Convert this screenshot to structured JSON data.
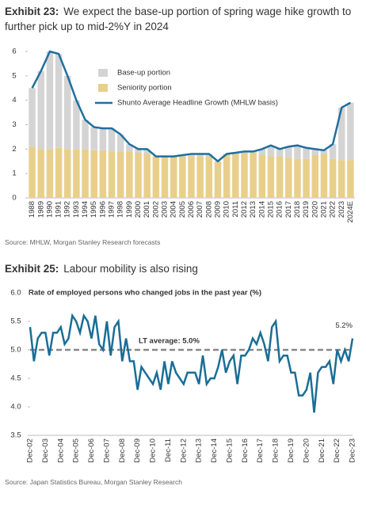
{
  "chart_data": [
    {
      "type": "bar",
      "stacked": true,
      "exhibit": "Exhibit 23:",
      "title": "We expect the base-up portion of spring wage hike growth to further pick up to mid-2%Y in 2024",
      "source": "Source: MHLW, Morgan Stanley Research forecasts",
      "categories": [
        "1988",
        "1989",
        "1990",
        "1991",
        "1992",
        "1993",
        "1994",
        "1995",
        "1996",
        "1997",
        "1998",
        "1999",
        "2000",
        "2001",
        "2002",
        "2003",
        "2004",
        "2005",
        "2006",
        "2007",
        "2008",
        "2009",
        "2010",
        "2011",
        "2012",
        "2013",
        "2014",
        "2015",
        "2016",
        "2017",
        "2018",
        "2019",
        "2020",
        "2021",
        "2022",
        "2023",
        "2024E"
      ],
      "series": [
        {
          "name": "Base-up portion",
          "type": "bar",
          "color": "#d4d4d4",
          "values": [
            2.4,
            3.2,
            4.0,
            3.85,
            3.0,
            2.0,
            1.2,
            0.95,
            0.9,
            0.95,
            0.7,
            0.3,
            0.15,
            0.2,
            0,
            0,
            0,
            0.05,
            0.1,
            0.1,
            0.1,
            0,
            0,
            0,
            0.05,
            0.05,
            0.25,
            0.45,
            0.3,
            0.45,
            0.55,
            0.45,
            0.25,
            0.15,
            0.6,
            2.15,
            2.35
          ]
        },
        {
          "name": "Seniority portion",
          "type": "bar",
          "color": "#e8cf8c",
          "values": [
            2.1,
            2.0,
            2.0,
            2.05,
            2.0,
            2.0,
            2.0,
            1.95,
            1.95,
            1.9,
            1.9,
            1.9,
            1.85,
            1.8,
            1.7,
            1.7,
            1.7,
            1.7,
            1.7,
            1.7,
            1.7,
            1.5,
            1.8,
            1.85,
            1.85,
            1.85,
            1.75,
            1.7,
            1.7,
            1.65,
            1.6,
            1.6,
            1.75,
            1.8,
            1.6,
            1.55,
            1.55
          ]
        },
        {
          "name": "Shunto Average Headline Growth (MHLW basis)",
          "type": "line",
          "color": "#1f6f9e",
          "values": [
            4.5,
            5.2,
            6.0,
            5.9,
            5.0,
            4.0,
            3.2,
            2.9,
            2.85,
            2.85,
            2.6,
            2.2,
            2.0,
            2.0,
            1.7,
            1.7,
            1.7,
            1.75,
            1.8,
            1.8,
            1.8,
            1.5,
            1.8,
            1.85,
            1.9,
            1.9,
            2.0,
            2.15,
            2.0,
            2.1,
            2.15,
            2.05,
            2.0,
            1.95,
            2.2,
            3.7,
            3.9
          ]
        }
      ],
      "ylim": [
        0,
        6
      ],
      "yticks": [
        0,
        1,
        2,
        3,
        4,
        5,
        6
      ],
      "grid": false,
      "legend": "top-right"
    },
    {
      "type": "line",
      "exhibit": "Exhibit 25:",
      "title": "Labour mobility is also rising",
      "subtitle": "Rate of employed persons who changed jobs in the past year  (%)",
      "source": "Source: Japan Statistics Bureau, Morgan Stanley Research",
      "categories": [
        "Dec-02",
        null,
        null,
        null,
        "Dec-03",
        null,
        null,
        null,
        "Dec-04",
        null,
        null,
        null,
        "Dec-05",
        null,
        null,
        null,
        "Dec-06",
        null,
        null,
        null,
        "Dec-07",
        null,
        null,
        null,
        "Dec-08",
        null,
        null,
        null,
        "Dec-09",
        null,
        null,
        null,
        "Dec-10",
        null,
        null,
        null,
        "Dec-11",
        null,
        null,
        null,
        "Dec-12",
        null,
        null,
        null,
        "Dec-13",
        null,
        null,
        null,
        "Dec-14",
        null,
        null,
        null,
        "Dec-15",
        null,
        null,
        null,
        "Dec-16",
        null,
        null,
        null,
        "Dec-17",
        null,
        null,
        null,
        "Dec-18",
        null,
        null,
        null,
        "Dec-19",
        null,
        null,
        null,
        "Dec-20",
        null,
        null,
        null,
        "Dec-21",
        null,
        null,
        null,
        "Dec-22",
        null,
        null,
        null,
        "Dec-23"
      ],
      "series": [
        {
          "name": "Rate of employed persons who changed jobs",
          "color": "#1a6e96",
          "values": [
            5.4,
            4.8,
            5.2,
            5.3,
            5.3,
            4.9,
            5.3,
            5.3,
            5.4,
            5.1,
            5.2,
            5.6,
            5.5,
            5.3,
            5.6,
            5.5,
            5.2,
            5.6,
            5.1,
            5.0,
            5.5,
            4.9,
            5.4,
            5.5,
            4.8,
            5.2,
            4.8,
            4.8,
            4.3,
            4.7,
            4.6,
            4.5,
            4.4,
            4.6,
            4.3,
            4.8,
            4.4,
            4.8,
            4.6,
            4.5,
            4.4,
            4.6,
            4.6,
            4.6,
            4.4,
            4.9,
            4.4,
            4.5,
            4.5,
            4.7,
            5.0,
            4.6,
            4.8,
            4.9,
            4.4,
            4.9,
            4.9,
            5.0,
            5.2,
            5.1,
            5.3,
            5.1,
            4.8,
            5.4,
            5.5,
            4.8,
            4.9,
            4.9,
            4.6,
            4.6,
            4.2,
            4.2,
            4.3,
            4.6,
            3.9,
            4.6,
            4.7,
            4.7,
            4.8,
            4.4,
            5.0,
            4.8,
            5.0,
            4.8,
            5.2
          ]
        }
      ],
      "last_value_label": "5.2%",
      "reference_line": {
        "value": 5.0,
        "label": "LT average: 5.0%",
        "color": "#888888"
      },
      "ylim": [
        3.5,
        6.0
      ],
      "yticks": [
        {
          "value": 3.5,
          "label": "3.5"
        },
        {
          "value": 4.0,
          "label": "4.0"
        },
        {
          "value": 4.5,
          "label": "4.5"
        },
        {
          "value": 5.0,
          "label": "5.0"
        },
        {
          "value": 5.5,
          "label": "5.5"
        },
        {
          "value": 6.0,
          "label": "6.0"
        }
      ],
      "grid": false
    }
  ]
}
